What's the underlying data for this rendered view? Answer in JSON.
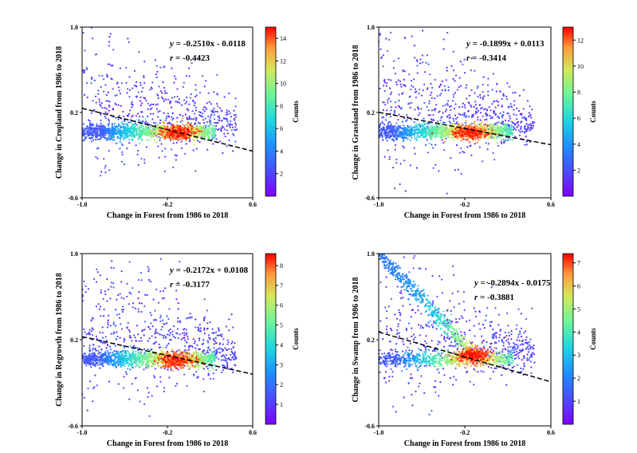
{
  "chart_data": [
    {
      "type": "scatter",
      "xlabel": "Change in Forest from 1986 to 2018",
      "ylabel": "Change in Cropland from 1986 to 2018",
      "xlim": [
        -1.0,
        0.6
      ],
      "ylim": [
        -0.6,
        1.0
      ],
      "xticks": [
        "-1.0",
        "-0.2",
        "0.6"
      ],
      "yticks": [
        "-0.6",
        "0.2",
        "1.0"
      ],
      "equation": {
        "y": "y",
        "rest": " = -0.2510x - 0.0118"
      },
      "r": {
        "r": "r",
        "rest": " = -0.4423"
      },
      "fit": {
        "slope": -0.251,
        "intercept": -0.0118
      },
      "colorbar": {
        "label": "Counts",
        "min": 0,
        "max": 15,
        "ticks": [
          "2",
          "4",
          "6",
          "8",
          "10",
          "12",
          "14"
        ]
      },
      "density": {
        "hotspot_x": -0.1,
        "hotspot_y": 0.01,
        "baseline_y": 0.02,
        "diag_branch": false
      }
    },
    {
      "type": "scatter",
      "xlabel": "Change in Forest from 1986 to 2018",
      "ylabel": "Change in Grassland from 1986 to 2018",
      "xlim": [
        -1.0,
        0.6
      ],
      "ylim": [
        -0.6,
        1.0
      ],
      "xticks": [
        "-1.0",
        "-0.2",
        "0.6"
      ],
      "yticks": [
        "-0.6",
        "0.2",
        "1.0"
      ],
      "equation": {
        "y": "y",
        "rest": " = -0.1899x + 0.0113"
      },
      "r": {
        "r": "r",
        "rest": " = -0.3414"
      },
      "fit": {
        "slope": -0.1899,
        "intercept": 0.0113
      },
      "colorbar": {
        "label": "Counts",
        "min": 0,
        "max": 13,
        "ticks": [
          "2",
          "4",
          "6",
          "8",
          "10",
          "12"
        ]
      },
      "density": {
        "hotspot_x": -0.15,
        "hotspot_y": 0.01,
        "baseline_y": 0.02,
        "diag_branch": false
      }
    },
    {
      "type": "scatter",
      "xlabel": "Change in Forest from 1986 to 2018",
      "ylabel": "Change in Regrowth from 1986 to 2018",
      "xlim": [
        -1.0,
        0.6
      ],
      "ylim": [
        -0.6,
        1.0
      ],
      "xticks": [
        "-1.0",
        "-0.2",
        "0.6"
      ],
      "yticks": [
        "-0.6",
        "0.2",
        "1.0"
      ],
      "equation": {
        "y": "y",
        "rest": " = -0.2172x + 0.0108"
      },
      "r": {
        "r": "r",
        "rest": " = -0.3177"
      },
      "fit": {
        "slope": -0.2172,
        "intercept": 0.0108
      },
      "colorbar": {
        "label": "Counts",
        "min": 0,
        "max": 8.6,
        "ticks": [
          "1",
          "2",
          "3",
          "4",
          "5",
          "6",
          "7",
          "8"
        ]
      },
      "density": {
        "hotspot_x": -0.12,
        "hotspot_y": 0.01,
        "baseline_y": 0.02,
        "diag_branch": false
      }
    },
    {
      "type": "scatter",
      "xlabel": "Change in Forest from 1986 to 2018",
      "ylabel": "Change in Swamp from 1986 to 2018",
      "xlim": [
        -1.0,
        0.6
      ],
      "ylim": [
        -0.6,
        1.0
      ],
      "xticks": [
        "-1.0",
        "-0.2",
        "0.6"
      ],
      "yticks": [
        "-0.6",
        "0.2",
        "1.0"
      ],
      "equation": {
        "y": "y",
        "rest": " = -0.2894x - 0.0175"
      },
      "r": {
        "r": "r",
        "rest": " = -0.3881"
      },
      "fit": {
        "slope": -0.2894,
        "intercept": -0.0175
      },
      "colorbar": {
        "label": "Counts",
        "min": 0,
        "max": 7.4,
        "ticks": [
          "1",
          "2",
          "3",
          "4",
          "5",
          "6",
          "7"
        ]
      },
      "density": {
        "hotspot_x": -0.12,
        "hotspot_y": 0.06,
        "baseline_y": 0.02,
        "diag_branch": true
      }
    }
  ]
}
